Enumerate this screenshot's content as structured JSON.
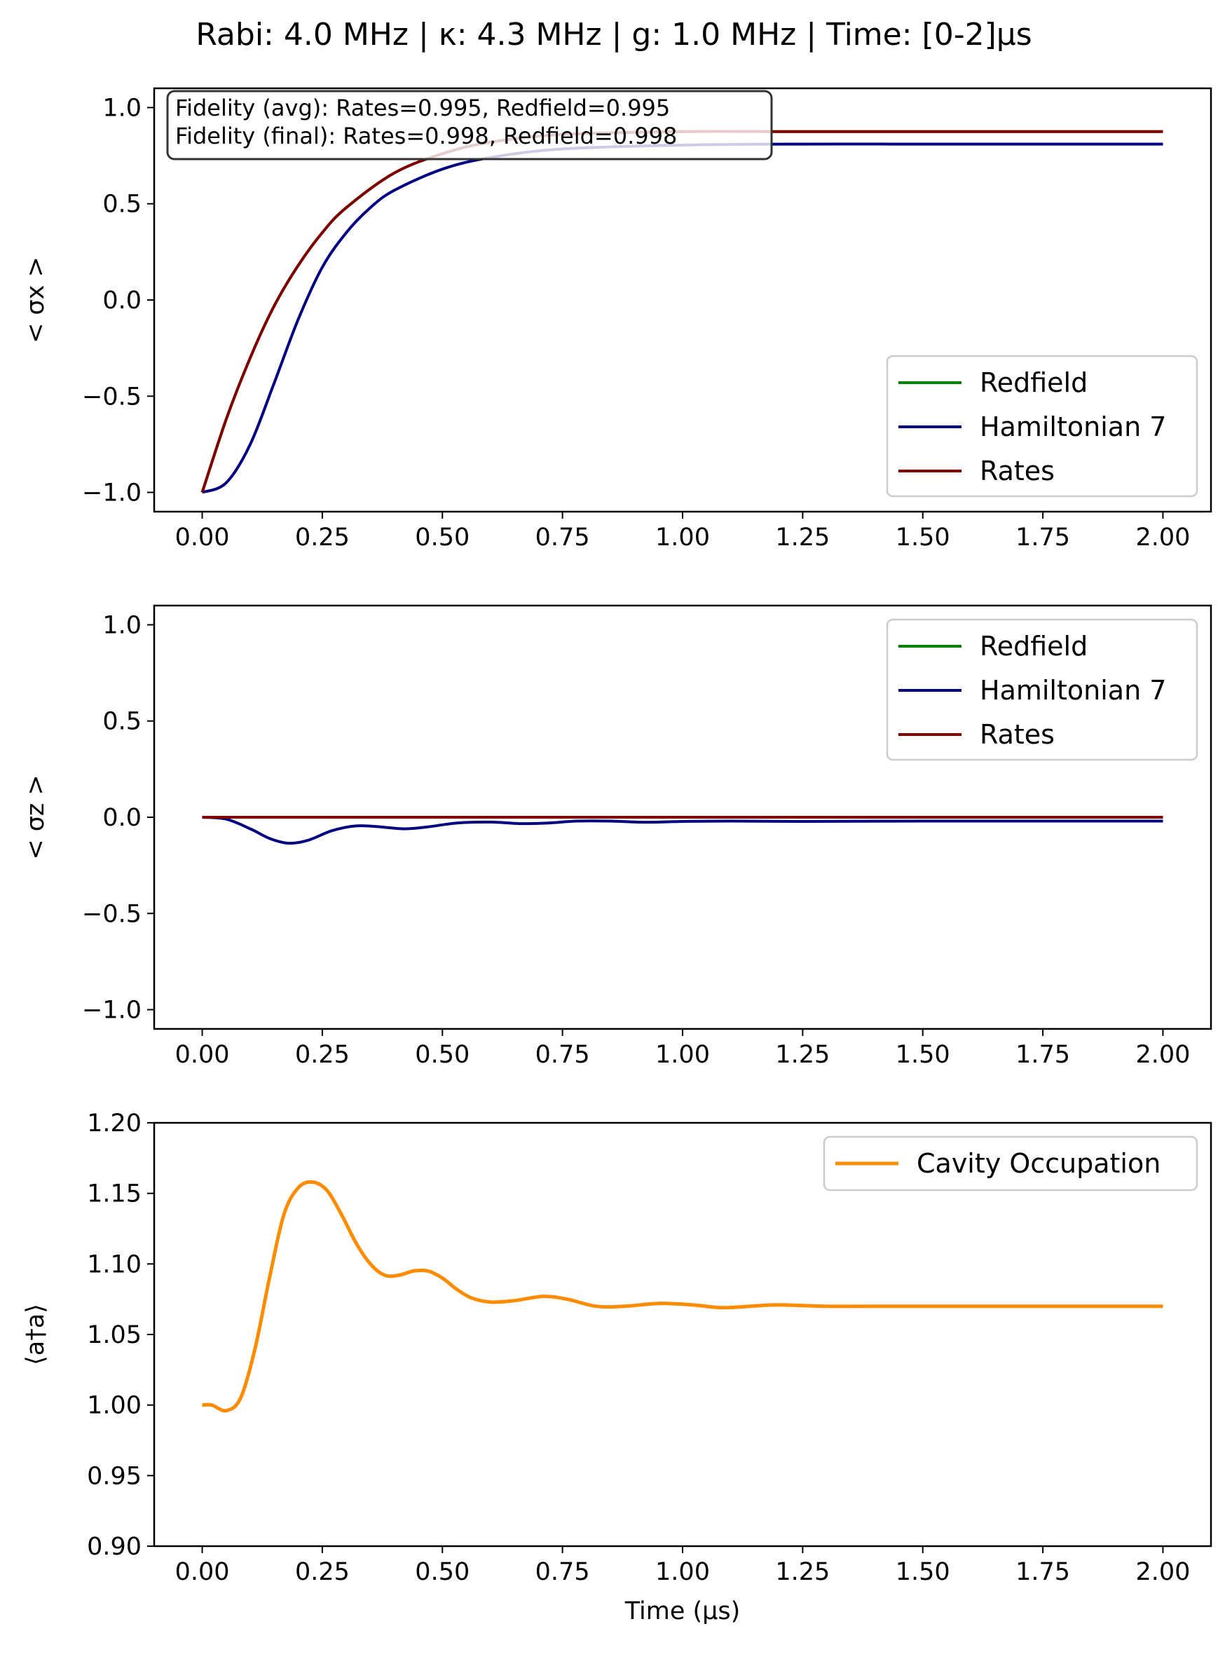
{
  "figure": {
    "title": "Rabi: 4.0 MHz | κ: 4.3 MHz | g: 1.0 MHz | Time: [0-2]μs"
  },
  "chart_data": [
    {
      "type": "line",
      "panel": "sigma_x",
      "ylabel": "< σx >",
      "xlabel": "",
      "xlim": [
        -0.1,
        2.1
      ],
      "ylim": [
        -1.1,
        1.1
      ],
      "xticks": [
        "0.00",
        "0.25",
        "0.50",
        "0.75",
        "1.00",
        "1.25",
        "1.50",
        "1.75",
        "2.00"
      ],
      "yticks": [
        "−1.0",
        "−0.5",
        "0.0",
        "0.5",
        "1.0"
      ],
      "legend_position": "lower-right",
      "annotation": [
        "Fidelity (avg): Rates=0.995, Redfield=0.995",
        "Fidelity (final): Rates=0.998, Redfield=0.998"
      ],
      "series": [
        {
          "name": "Redfield",
          "color": "#008000",
          "x": [
            0,
            0.05,
            0.1,
            0.15,
            0.2,
            0.25,
            0.3,
            0.4,
            0.5,
            0.6,
            0.75,
            1.0,
            1.25,
            1.5,
            1.75,
            2.0
          ],
          "y": [
            -1.0,
            -0.62,
            -0.3,
            -0.03,
            0.18,
            0.35,
            0.48,
            0.66,
            0.76,
            0.82,
            0.86,
            0.875,
            0.875,
            0.875,
            0.875,
            0.875
          ]
        },
        {
          "name": "Hamiltonian 7",
          "color": "#000080",
          "x": [
            0,
            0.05,
            0.1,
            0.15,
            0.2,
            0.25,
            0.3,
            0.35,
            0.4,
            0.5,
            0.6,
            0.75,
            1.0,
            1.25,
            1.5,
            1.75,
            2.0
          ],
          "y": [
            -1.0,
            -0.95,
            -0.75,
            -0.43,
            -0.1,
            0.17,
            0.35,
            0.48,
            0.57,
            0.68,
            0.74,
            0.785,
            0.805,
            0.81,
            0.81,
            0.81,
            0.81
          ]
        },
        {
          "name": "Rates",
          "color": "#800000",
          "x": [
            0,
            0.05,
            0.1,
            0.15,
            0.2,
            0.25,
            0.3,
            0.4,
            0.5,
            0.6,
            0.75,
            1.0,
            1.25,
            1.5,
            1.75,
            2.0
          ],
          "y": [
            -1.0,
            -0.62,
            -0.3,
            -0.03,
            0.18,
            0.35,
            0.48,
            0.66,
            0.76,
            0.82,
            0.86,
            0.875,
            0.875,
            0.875,
            0.875,
            0.875
          ]
        }
      ]
    },
    {
      "type": "line",
      "panel": "sigma_z",
      "ylabel": "< σz >",
      "xlabel": "",
      "xlim": [
        -0.1,
        2.1
      ],
      "ylim": [
        -1.1,
        1.1
      ],
      "xticks": [
        "0.00",
        "0.25",
        "0.50",
        "0.75",
        "1.00",
        "1.25",
        "1.50",
        "1.75",
        "2.00"
      ],
      "yticks": [
        "−1.0",
        "−0.5",
        "0.0",
        "0.5",
        "1.0"
      ],
      "legend_position": "upper-right",
      "series": [
        {
          "name": "Redfield",
          "color": "#008000",
          "x": [
            0,
            2.0
          ],
          "y": [
            0.0,
            0.0
          ]
        },
        {
          "name": "Hamiltonian 7",
          "color": "#000080",
          "x": [
            0,
            0.05,
            0.1,
            0.14,
            0.18,
            0.22,
            0.27,
            0.32,
            0.37,
            0.42,
            0.47,
            0.53,
            0.6,
            0.66,
            0.72,
            0.78,
            0.85,
            0.92,
            1.0,
            1.1,
            1.25,
            1.5,
            1.75,
            2.0
          ],
          "y": [
            0.0,
            -0.01,
            -0.06,
            -0.11,
            -0.135,
            -0.12,
            -0.07,
            -0.045,
            -0.05,
            -0.06,
            -0.05,
            -0.03,
            -0.025,
            -0.033,
            -0.03,
            -0.02,
            -0.02,
            -0.026,
            -0.022,
            -0.02,
            -0.022,
            -0.02,
            -0.02,
            -0.02
          ]
        },
        {
          "name": "Rates",
          "color": "#800000",
          "x": [
            0,
            2.0
          ],
          "y": [
            0.0,
            0.0
          ]
        }
      ]
    },
    {
      "type": "line",
      "panel": "cavity",
      "ylabel": "⟨a†a⟩",
      "xlabel": "Time (μs)",
      "xlim": [
        -0.1,
        2.1
      ],
      "ylim": [
        0.9,
        1.2
      ],
      "xticks": [
        "0.00",
        "0.25",
        "0.50",
        "0.75",
        "1.00",
        "1.25",
        "1.50",
        "1.75",
        "2.00"
      ],
      "yticks": [
        "0.90",
        "0.95",
        "1.00",
        "1.05",
        "1.10",
        "1.15",
        "1.20"
      ],
      "legend_position": "upper-right",
      "series": [
        {
          "name": "Cavity Occupation",
          "color": "#ff8c00",
          "x": [
            0,
            0.02,
            0.05,
            0.08,
            0.11,
            0.14,
            0.17,
            0.2,
            0.23,
            0.26,
            0.29,
            0.32,
            0.35,
            0.38,
            0.41,
            0.44,
            0.47,
            0.5,
            0.53,
            0.56,
            0.6,
            0.65,
            0.71,
            0.76,
            0.82,
            0.88,
            0.95,
            1.02,
            1.08,
            1.14,
            1.2,
            1.3,
            1.43,
            1.56,
            1.7,
            1.85,
            2.0
          ],
          "y": [
            1.0,
            1.0,
            0.996,
            1.005,
            1.04,
            1.09,
            1.135,
            1.154,
            1.158,
            1.152,
            1.135,
            1.115,
            1.1,
            1.092,
            1.092,
            1.095,
            1.095,
            1.09,
            1.082,
            1.076,
            1.073,
            1.074,
            1.077,
            1.075,
            1.07,
            1.07,
            1.072,
            1.071,
            1.069,
            1.07,
            1.071,
            1.07,
            1.07,
            1.07,
            1.07,
            1.07,
            1.07
          ]
        }
      ]
    }
  ]
}
